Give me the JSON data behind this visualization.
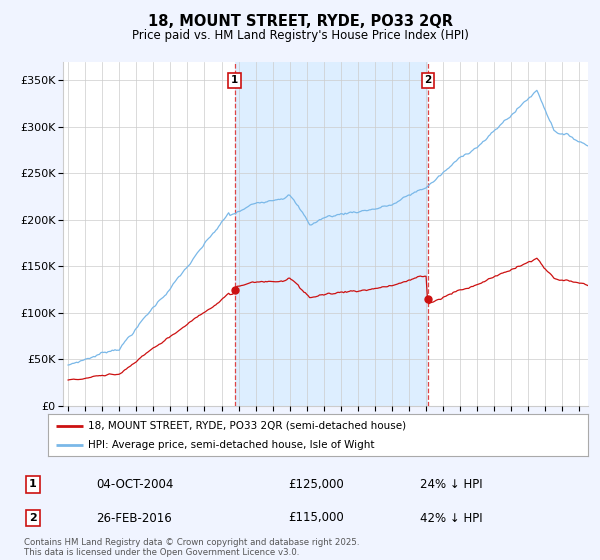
{
  "title": "18, MOUNT STREET, RYDE, PO33 2QR",
  "subtitle": "Price paid vs. HM Land Registry's House Price Index (HPI)",
  "ytick_values": [
    0,
    50000,
    100000,
    150000,
    200000,
    250000,
    300000,
    350000
  ],
  "ylim": [
    0,
    370000
  ],
  "xlim_start": 1994.7,
  "xlim_end": 2025.5,
  "hpi_color": "#7ab8e8",
  "price_color": "#cc1111",
  "sale1_x": 2004.77,
  "sale1_y": 125000,
  "sale1_label": "04-OCT-2004",
  "sale1_price": "£125,000",
  "sale1_pct": "24% ↓ HPI",
  "sale2_x": 2016.12,
  "sale2_y": 115000,
  "sale2_label": "26-FEB-2016",
  "sale2_price": "£115,000",
  "sale2_pct": "42% ↓ HPI",
  "legend_line1": "18, MOUNT STREET, RYDE, PO33 2QR (semi-detached house)",
  "legend_line2": "HPI: Average price, semi-detached house, Isle of Wight",
  "footnote": "Contains HM Land Registry data © Crown copyright and database right 2025.\nThis data is licensed under the Open Government Licence v3.0.",
  "background_color": "#f0f4ff",
  "plot_bg_color": "#ffffff",
  "shade_color": "#ddeeff",
  "grid_color": "#cccccc",
  "vline_color": "#dd4444"
}
